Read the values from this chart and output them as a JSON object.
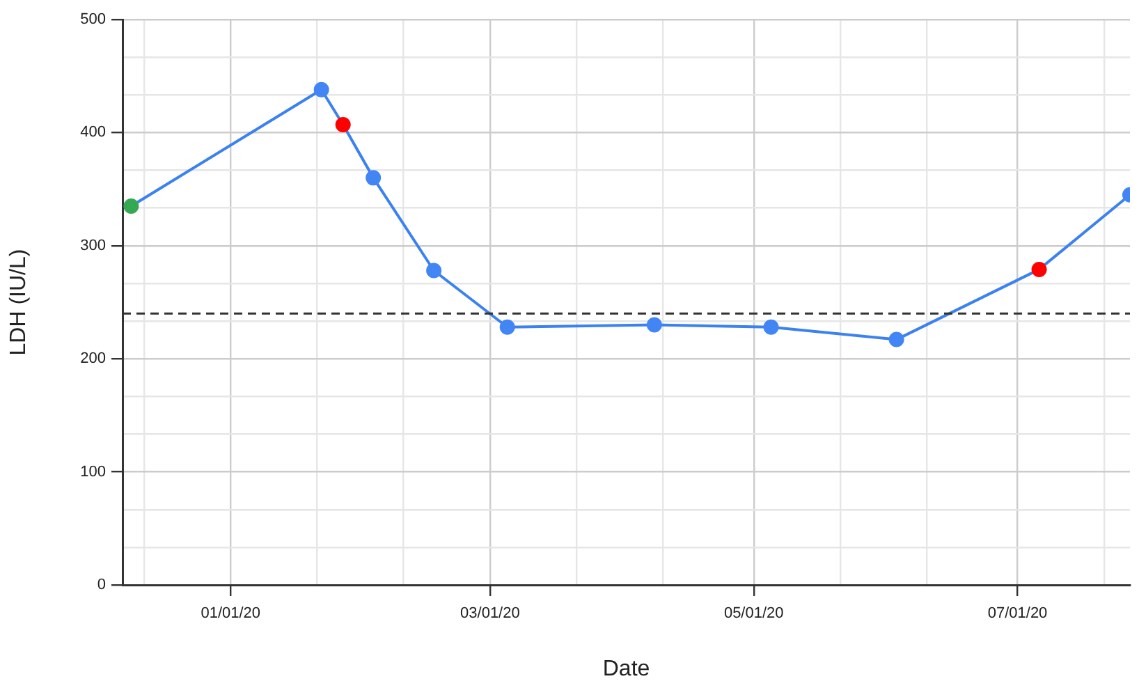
{
  "chart_data": {
    "type": "line",
    "xlabel": "Date",
    "ylabel": "LDH (IU/L)",
    "x": [
      "2019-12-09",
      "2020-01-22",
      "2020-01-27",
      "2020-02-03",
      "2020-02-17",
      "2020-03-05",
      "2020-04-08",
      "2020-05-05",
      "2020-06-03",
      "2020-07-06",
      "2020-07-27"
    ],
    "series": [
      {
        "color": "#3b82f0",
        "colors": [
          "#34a853",
          "#4285f4",
          "#ff0000",
          "#4285f4",
          "#4285f4",
          "#4285f4",
          "#4285f4",
          "#4285f4",
          "#4285f4",
          "#ff0000",
          "#4285f4"
        ],
        "values": [
          335,
          438,
          407,
          360,
          278,
          228,
          230,
          228,
          217,
          279,
          345
        ]
      }
    ],
    "xlim": [
      "2019-12-07",
      "2020-07-27"
    ],
    "xticks": [
      {
        "value": "2019-12-12",
        "label": null
      },
      {
        "value": "2020-01-01",
        "label": "01/01/20"
      },
      {
        "value": "2020-01-21",
        "label": null
      },
      {
        "value": "2020-02-10",
        "label": null
      },
      {
        "value": "2020-03-01",
        "label": "03/01/20"
      },
      {
        "value": "2020-03-21",
        "label": null
      },
      {
        "value": "2020-04-10",
        "label": null
      },
      {
        "value": "2020-05-01",
        "label": "05/01/20"
      },
      {
        "value": "2020-05-21",
        "label": null
      },
      {
        "value": "2020-06-10",
        "label": null
      },
      {
        "value": "2020-07-01",
        "label": "07/01/20"
      },
      {
        "value": "2020-07-21",
        "label": null
      }
    ],
    "ylim": [
      0,
      500
    ],
    "yticks": [
      0,
      {
        "value": 33.33,
        "label": null
      },
      {
        "value": 66.67,
        "label": null
      },
      100,
      {
        "value": 133.33,
        "label": null
      },
      {
        "value": 166.67,
        "label": null
      },
      200,
      {
        "value": 233.33,
        "label": null
      },
      {
        "value": 266.67,
        "label": null
      },
      300,
      {
        "value": 333.33,
        "label": null
      },
      {
        "value": 366.67,
        "label": null
      },
      400,
      {
        "value": 433.33,
        "label": null
      },
      {
        "value": 466.67,
        "label": null
      },
      500
    ],
    "ref_lines": [
      {
        "axis": "y",
        "value": 240,
        "color": "#333333",
        "line_style": "dashed"
      }
    ],
    "grid": true,
    "marker": "circle",
    "line_style": "solid",
    "legend": false
  }
}
